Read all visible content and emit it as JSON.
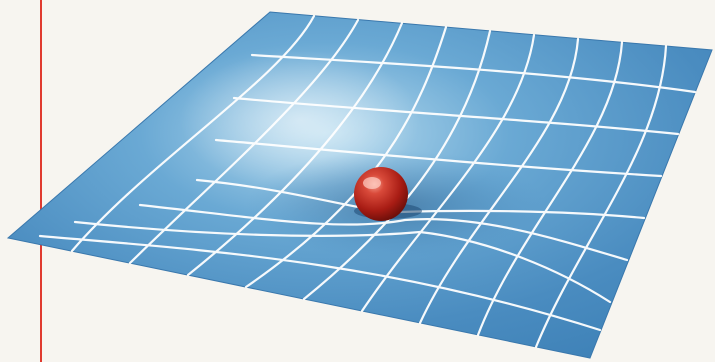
{
  "figure": {
    "subject": "sphere-on-grid-surface",
    "colors": {
      "page_background": "#f7f5f0",
      "margin_line": "#e03a2f",
      "surface_blue": "#4f93c4",
      "surface_highlight": "#a9d2ea",
      "grid_lines": "#ffffff",
      "sphere_red": "#c0271f",
      "sphere_highlight": "#f08070",
      "shadow": "#2c5e8c"
    }
  }
}
